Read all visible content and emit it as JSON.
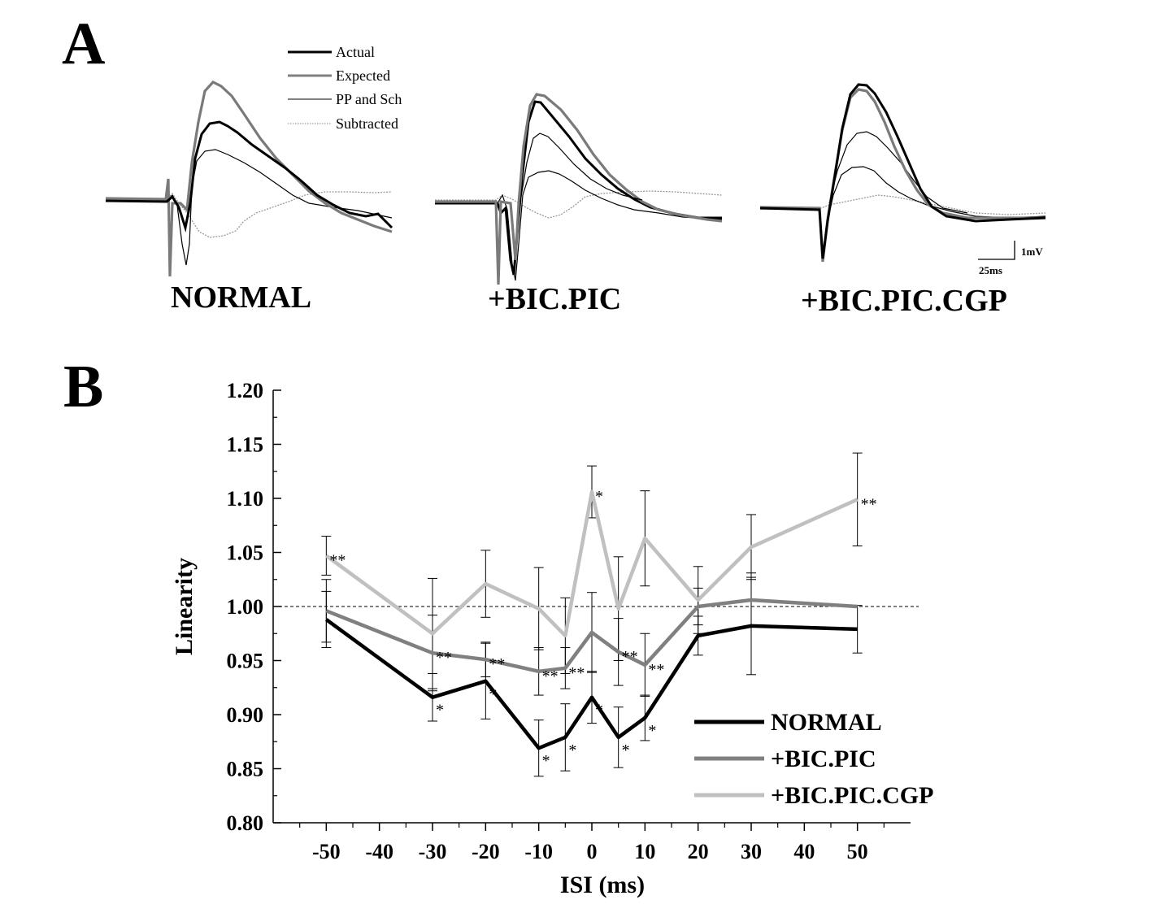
{
  "panel_a": {
    "letter": "A",
    "legend": [
      {
        "label": "Actual",
        "color": "#000000",
        "width": 3
      },
      {
        "label": "Expected",
        "color": "#808080",
        "width": 3
      },
      {
        "label": "PP and Sch",
        "color": "#000000",
        "width": 1
      },
      {
        "label": "Subtracted",
        "color": "#888888",
        "width": 1,
        "dotted": true
      }
    ],
    "conditions": [
      "NORMAL",
      "+BIC.PIC",
      "+BIC.PIC.CGP"
    ],
    "scale_bar": {
      "voltage": "1mV",
      "time": "25ms"
    }
  },
  "panel_b": {
    "letter": "B"
  },
  "chart_data": {
    "type": "line",
    "title": "",
    "xlabel": "ISI (ms)",
    "ylabel": "Linearity",
    "xlim": [
      -60,
      60
    ],
    "ylim": [
      0.8,
      1.2
    ],
    "xticks": [
      "-50",
      "-40",
      "-30",
      "-20",
      "-10",
      "0",
      "10",
      "20",
      "30",
      "40",
      "50"
    ],
    "yticks": [
      "0.80",
      "0.85",
      "0.90",
      "0.95",
      "1.00",
      "1.05",
      "1.10",
      "1.15",
      "1.20"
    ],
    "reference_line": 1.0,
    "legend_position": "bottom-right",
    "series": [
      {
        "name": "NORMAL",
        "color": "#000000",
        "x": [
          -50,
          -30,
          -20,
          -10,
          -5,
          0,
          5,
          10,
          20,
          30,
          50
        ],
        "y": [
          0.988,
          0.916,
          0.931,
          0.869,
          0.879,
          0.916,
          0.879,
          0.897,
          0.973,
          0.982,
          0.979
        ],
        "err": [
          0.026,
          0.022,
          0.035,
          0.026,
          0.031,
          0.024,
          0.028,
          0.021,
          0.018,
          0.045,
          0.022
        ],
        "stars": [
          "",
          "*",
          "*",
          "*",
          "*",
          "*",
          "*",
          "*",
          "",
          "",
          ""
        ]
      },
      {
        "name": "+BIC.PIC",
        "color": "#808080",
        "x": [
          -50,
          -30,
          -20,
          -10,
          -5,
          0,
          5,
          10,
          20,
          30,
          50
        ],
        "y": [
          0.996,
          0.957,
          0.951,
          0.94,
          0.943,
          0.976,
          0.958,
          0.946,
          1.0,
          1.006,
          1.0
        ],
        "err": [
          0.029,
          0.035,
          0.016,
          0.022,
          0.019,
          0.037,
          0.031,
          0.029,
          0.017,
          0.025,
          0.0
        ],
        "stars": [
          "",
          "**",
          "**",
          "**",
          "**",
          "",
          "**",
          "**",
          "",
          "",
          ""
        ]
      },
      {
        "name": "+BIC.PIC.CGP",
        "color": "#c0c0c0",
        "x": [
          -50,
          -30,
          -20,
          -10,
          -5,
          0,
          5,
          10,
          20,
          30,
          50
        ],
        "y": [
          1.047,
          0.975,
          1.021,
          0.998,
          0.973,
          1.106,
          0.998,
          1.063,
          1.006,
          1.055,
          1.099
        ],
        "err": [
          0.018,
          0.051,
          0.031,
          0.038,
          0.035,
          0.024,
          0.048,
          0.044,
          0.031,
          0.03,
          0.043
        ],
        "stars": [
          "**",
          "",
          "",
          "",
          "",
          "*",
          "",
          "",
          "",
          "",
          "**"
        ]
      }
    ]
  }
}
